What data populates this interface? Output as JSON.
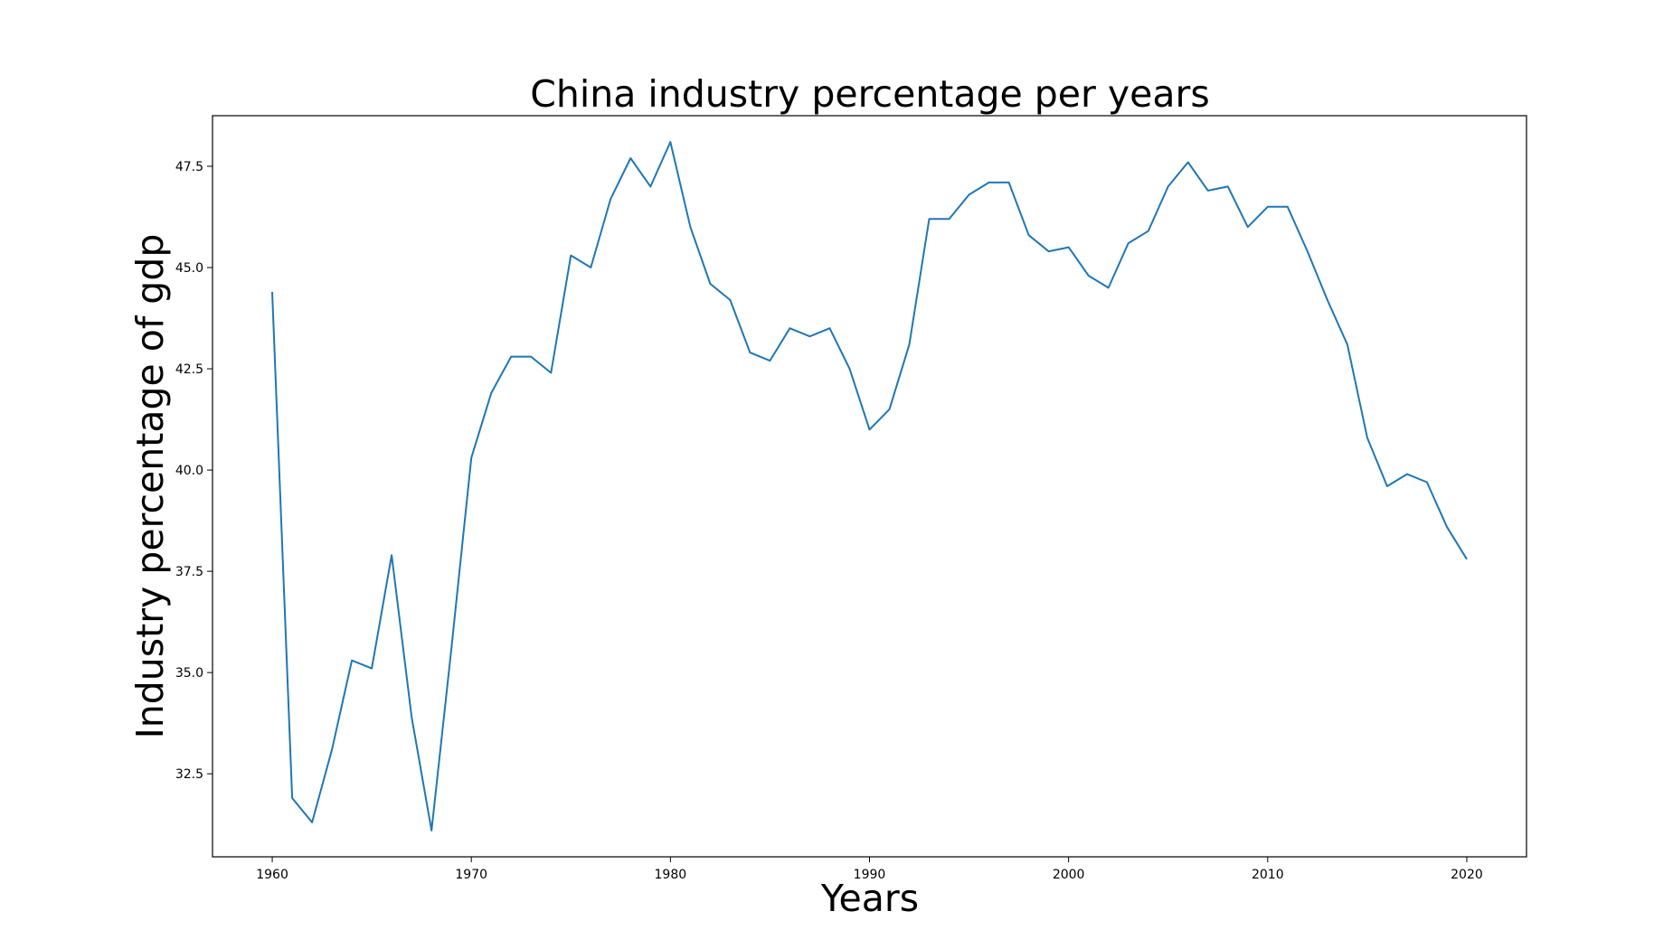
{
  "chart_data": {
    "type": "line",
    "title": "China industry percentage per years",
    "xlabel": "Years",
    "ylabel": "Industry percentage of gdp",
    "xlim": [
      1957,
      2023
    ],
    "ylim": [
      30.45,
      48.75
    ],
    "grid": false,
    "x_ticks": [
      1960,
      1970,
      1980,
      1990,
      2000,
      2010,
      2020
    ],
    "y_ticks": [
      32.5,
      35.0,
      37.5,
      40.0,
      42.5,
      45.0,
      47.5
    ],
    "x_tick_labels": [
      "1960",
      "1970",
      "1980",
      "1990",
      "2000",
      "2010",
      "2020"
    ],
    "y_tick_labels": [
      "32.5",
      "35.0",
      "37.5",
      "40.0",
      "42.5",
      "45.0",
      "47.5"
    ],
    "line_color": "#1f77b4",
    "series": [
      {
        "x": [
          1960,
          1961,
          1962,
          1963,
          1964,
          1965,
          1966,
          1967,
          1968,
          1969,
          1970,
          1971,
          1972,
          1973,
          1974,
          1975,
          1976,
          1977,
          1978,
          1979,
          1980,
          1981,
          1982,
          1983,
          1984,
          1985,
          1986,
          1987,
          1988,
          1989,
          1990,
          1991,
          1992,
          1993,
          1994,
          1995,
          1996,
          1997,
          1998,
          1999,
          2000,
          2001,
          2002,
          2003,
          2004,
          2005,
          2006,
          2007,
          2008,
          2009,
          2010,
          2011,
          2012,
          2013,
          2014,
          2015,
          2016,
          2017,
          2018,
          2019,
          2020
        ],
        "values": [
          44.4,
          31.9,
          31.3,
          33.1,
          35.3,
          35.1,
          37.9,
          33.9,
          31.1,
          35.6,
          40.3,
          41.9,
          42.8,
          42.8,
          42.4,
          45.3,
          45.0,
          46.7,
          47.7,
          47.0,
          48.1,
          46.0,
          44.6,
          44.2,
          42.9,
          42.7,
          43.5,
          43.3,
          43.5,
          42.5,
          41.0,
          41.5,
          43.1,
          46.2,
          46.2,
          46.8,
          47.1,
          47.1,
          45.8,
          45.4,
          45.5,
          44.8,
          44.5,
          45.6,
          45.9,
          47.0,
          47.6,
          46.9,
          47.0,
          46.0,
          46.5,
          46.5,
          45.4,
          44.2,
          43.1,
          40.8,
          39.6,
          39.9,
          39.7,
          38.6,
          37.8
        ]
      }
    ]
  }
}
